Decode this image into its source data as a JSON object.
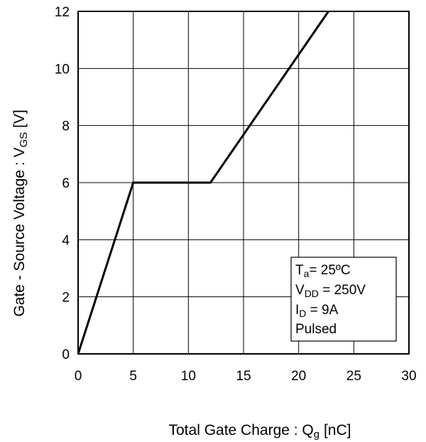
{
  "chart_data": {
    "type": "line",
    "xlabel": {
      "main": "Total Gate Charge : Q",
      "sub": "g",
      "unit": " [nC]"
    },
    "ylabel": {
      "main": "Gate - Source Voltage : V",
      "sub": "GS",
      "unit": " [V]"
    },
    "xlim": [
      0,
      30
    ],
    "ylim": [
      0,
      12
    ],
    "xticks": [
      0,
      5,
      10,
      15,
      20,
      25,
      30
    ],
    "yticks": [
      0,
      2,
      4,
      6,
      8,
      10,
      12
    ],
    "grid": true,
    "series": [
      {
        "x": [
          0,
          5,
          12,
          22.7
        ],
        "y": [
          0,
          6,
          6,
          12
        ]
      }
    ],
    "annotation_box": {
      "placement": "bottom-right",
      "lines": [
        {
          "main": "T",
          "sub": "a",
          "rest": "= 25ºC"
        },
        {
          "main": "V",
          "sub": "DD",
          "rest": " = 250V"
        },
        {
          "main": "I",
          "sub": "D",
          "rest": " = 9A"
        },
        {
          "main": "Pulsed",
          "sub": "",
          "rest": ""
        }
      ]
    }
  }
}
